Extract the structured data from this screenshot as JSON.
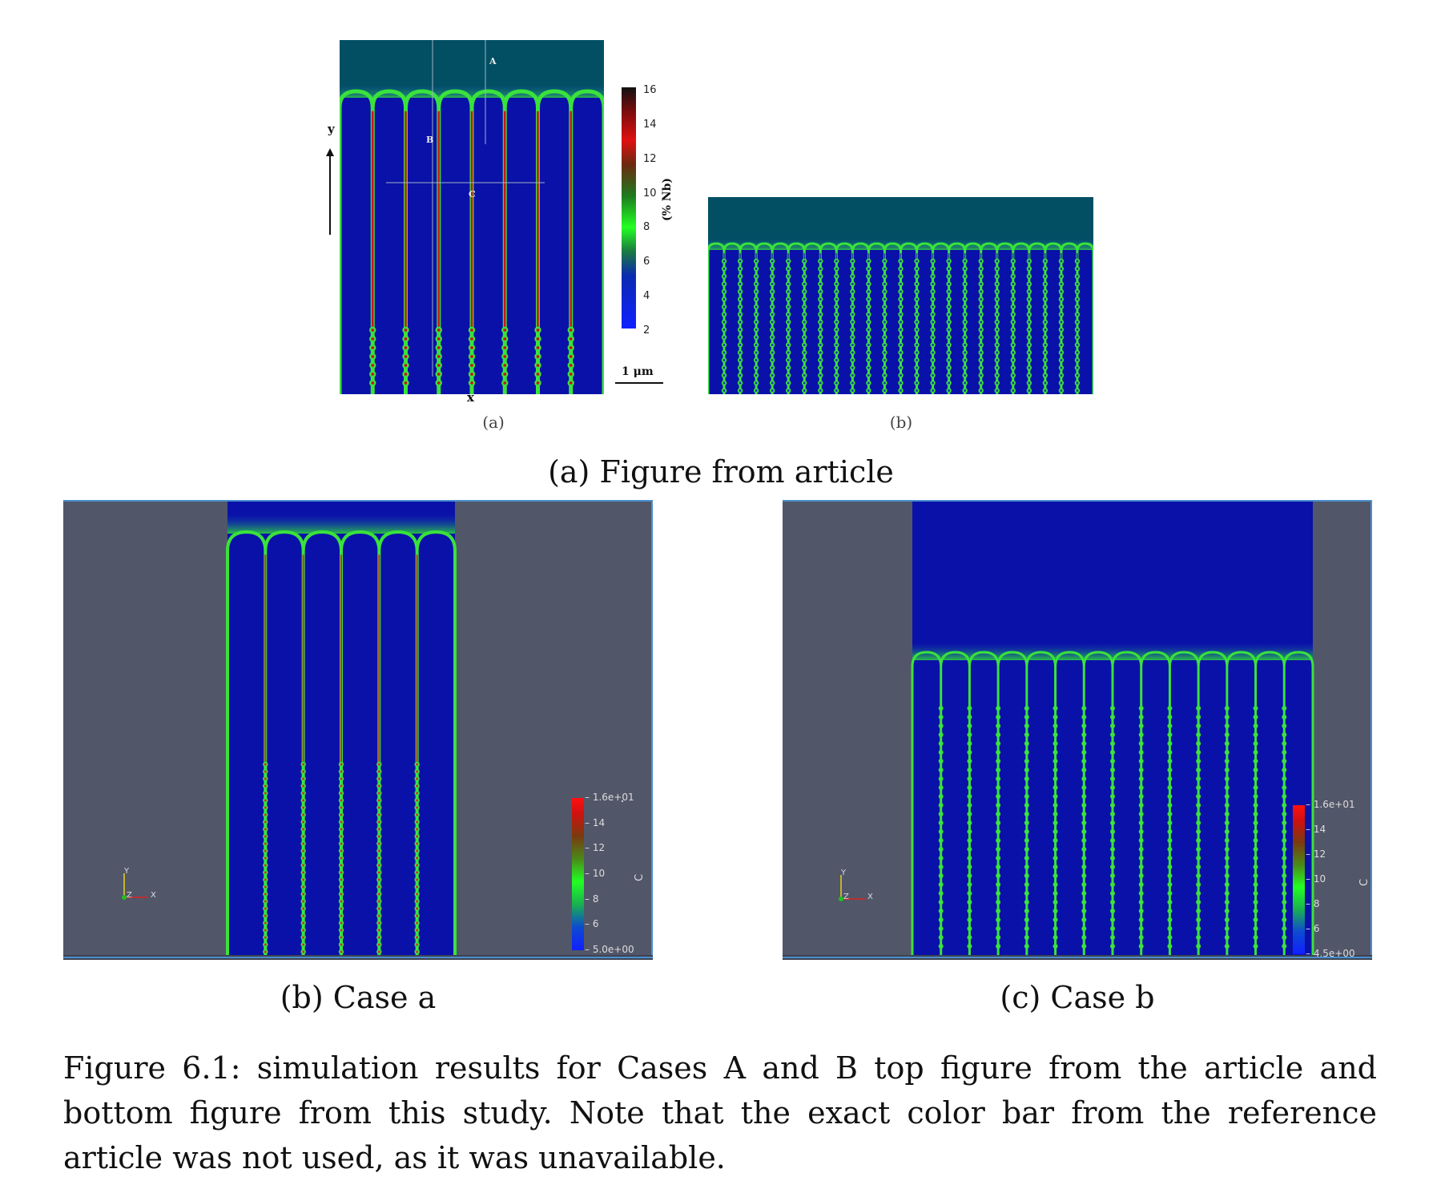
{
  "figure": {
    "panel_a": {
      "caption": "(a) Figure from article",
      "left_image": {
        "sublabel": "(a)",
        "axis_y": "y",
        "axis_x": "x",
        "line_labels": [
          "A",
          "B",
          "C"
        ],
        "colorbar_ticks": [
          "16",
          "14",
          "12",
          "10",
          "8",
          "6",
          "4",
          "2"
        ],
        "colorbar_label": "(% Nb)",
        "scalebar_label": "1 μm"
      },
      "right_image": {
        "sublabel": "(b)"
      }
    },
    "panel_b": {
      "caption": "(b) Case a",
      "colorbar_ticks": [
        "1.6e+01",
        "14",
        "12",
        "10",
        "8",
        "6",
        "5.0e+00"
      ],
      "colorbar_label": "C",
      "axes_triad": [
        "Y",
        "Z",
        "X"
      ]
    },
    "panel_c": {
      "caption": "(c) Case b",
      "colorbar_ticks": [
        "1.6e+01",
        "14",
        "12",
        "10",
        "8",
        "6",
        "4.5e+00"
      ],
      "colorbar_label": "C",
      "axes_triad": [
        "Y",
        "Z",
        "X"
      ]
    },
    "main_caption": "Figure 6.1: simulation results for Cases A and B top figure from the article and bottom figure from this study. Note that the exact color bar from the reference article was not used, as it was unavailable.",
    "colors": {
      "liquid_top_article": "#024f63",
      "solid_blue": "#0a11a8",
      "interface_green": "#39e53a",
      "paraview_background": "#525669"
    }
  }
}
